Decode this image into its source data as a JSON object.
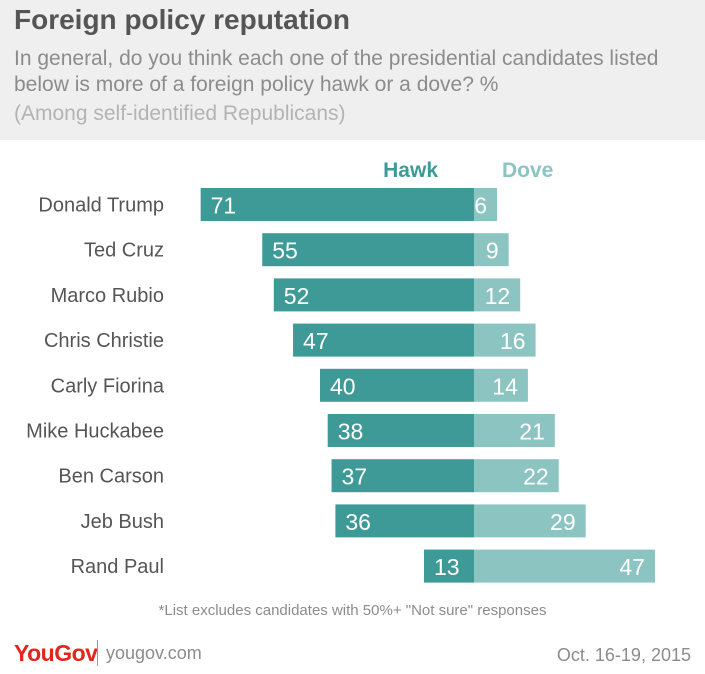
{
  "header": {
    "title": "Foreign policy reputation",
    "subtitle": "In general, do you think each one of the presidential candidates listed below is more of a foreign policy hawk or a dove? %",
    "note": "(Among self-identified Republicans)"
  },
  "chart_data": {
    "type": "bar",
    "categories": [
      "Donald Trump",
      "Ted Cruz",
      "Marco Rubio",
      "Chris Christie",
      "Carly Fiorina",
      "Mike Huckabee",
      "Ben Carson",
      "Jeb Bush",
      "Rand Paul"
    ],
    "series": [
      {
        "name": "Hawk",
        "values": [
          71,
          55,
          52,
          47,
          40,
          38,
          37,
          36,
          13
        ],
        "color": "#3e9a97"
      },
      {
        "name": "Dove",
        "values": [
          6,
          9,
          12,
          16,
          14,
          21,
          22,
          29,
          47
        ],
        "color": "#8cc4c2"
      }
    ],
    "legend": "top"
  },
  "footer": {
    "footnote": "*List excludes candidates with 50%+ \"Not sure\" responses",
    "brand": "YouGov",
    "site": "yougov.com",
    "date": "Oct. 16-19, 2015"
  }
}
